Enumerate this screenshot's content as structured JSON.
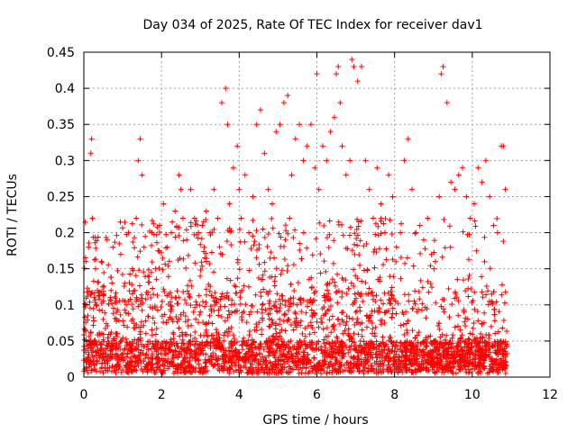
{
  "chart_data": {
    "type": "scatter",
    "title": "Day 034 of 2025, Rate Of TEC Index for receiver dav1",
    "xlabel": "GPS time / hours",
    "ylabel": "ROTI / TECUs",
    "xlim": [
      0,
      12
    ],
    "ylim": [
      0,
      0.45
    ],
    "xticks": [
      0,
      2,
      4,
      6,
      8,
      10,
      12
    ],
    "yticks": [
      0,
      0.05,
      0.1,
      0.15,
      0.2,
      0.25,
      0.3,
      0.35,
      0.4,
      0.45
    ],
    "xtick_labels": [
      "0",
      "2",
      "4",
      "6",
      "8",
      "10",
      "12"
    ],
    "ytick_labels": [
      "0",
      "0.05",
      "0.1",
      "0.15",
      "0.2",
      "0.25",
      "0.3",
      "0.35",
      "0.4",
      "0.45"
    ],
    "grid": true,
    "marker": "+",
    "color": "#ff0000",
    "series": [
      {
        "name": "ROTI",
        "x": [
          0.05,
          0.12,
          0.18,
          0.2,
          0.22,
          0.3,
          0.35,
          0.45,
          0.5,
          0.6,
          0.7,
          0.75,
          0.85,
          0.95,
          1.05,
          1.15,
          1.25,
          1.35,
          1.4,
          1.45,
          1.5,
          1.55,
          1.65,
          1.75,
          1.85,
          1.95,
          2.05,
          2.15,
          2.25,
          2.35,
          2.45,
          2.5,
          2.55,
          2.65,
          2.75,
          2.85,
          2.95,
          3.05,
          3.15,
          3.25,
          3.35,
          3.45,
          3.55,
          3.65,
          3.7,
          3.75,
          3.85,
          3.95,
          4.0,
          4.05,
          4.15,
          4.25,
          4.35,
          4.45,
          4.55,
          4.65,
          4.75,
          4.85,
          4.95,
          5.05,
          5.15,
          5.25,
          5.3,
          5.35,
          5.45,
          5.55,
          5.65,
          5.75,
          5.85,
          5.95,
          6.0,
          6.05,
          6.15,
          6.25,
          6.35,
          6.45,
          6.5,
          6.55,
          6.6,
          6.65,
          6.75,
          6.85,
          6.9,
          6.95,
          7.05,
          7.15,
          7.25,
          7.35,
          7.45,
          7.55,
          7.65,
          7.75,
          7.85,
          7.95,
          8.05,
          8.15,
          8.25,
          8.35,
          8.45,
          8.55,
          8.65,
          8.75,
          8.85,
          8.95,
          9.05,
          9.15,
          9.2,
          9.25,
          9.35,
          9.45,
          9.55,
          9.65,
          9.75,
          9.85,
          9.95,
          10.05,
          10.15,
          10.25,
          10.35,
          10.45,
          10.55,
          10.65,
          10.75,
          10.8,
          10.85
        ],
        "y": [
          0.1,
          0.18,
          0.31,
          0.33,
          0.22,
          0.15,
          0.12,
          0.16,
          0.08,
          0.19,
          0.12,
          0.18,
          0.09,
          0.17,
          0.13,
          0.2,
          0.15,
          0.22,
          0.3,
          0.33,
          0.28,
          0.18,
          0.14,
          0.2,
          0.15,
          0.21,
          0.24,
          0.18,
          0.2,
          0.23,
          0.28,
          0.26,
          0.22,
          0.19,
          0.26,
          0.22,
          0.2,
          0.21,
          0.23,
          0.2,
          0.26,
          0.22,
          0.38,
          0.4,
          0.35,
          0.24,
          0.29,
          0.32,
          0.26,
          0.22,
          0.28,
          0.2,
          0.25,
          0.35,
          0.37,
          0.31,
          0.26,
          0.24,
          0.34,
          0.35,
          0.38,
          0.39,
          0.22,
          0.28,
          0.33,
          0.35,
          0.3,
          0.32,
          0.35,
          0.29,
          0.42,
          0.26,
          0.32,
          0.3,
          0.34,
          0.36,
          0.42,
          0.43,
          0.38,
          0.32,
          0.28,
          0.3,
          0.44,
          0.43,
          0.41,
          0.43,
          0.3,
          0.26,
          0.22,
          0.29,
          0.24,
          0.2,
          0.28,
          0.25,
          0.18,
          0.2,
          0.3,
          0.33,
          0.26,
          0.2,
          0.21,
          0.19,
          0.22,
          0.17,
          0.16,
          0.25,
          0.42,
          0.43,
          0.38,
          0.27,
          0.26,
          0.28,
          0.29,
          0.25,
          0.22,
          0.24,
          0.29,
          0.27,
          0.3,
          0.25,
          0.21,
          0.2,
          0.32,
          0.32,
          0.26
        ]
      }
    ]
  }
}
